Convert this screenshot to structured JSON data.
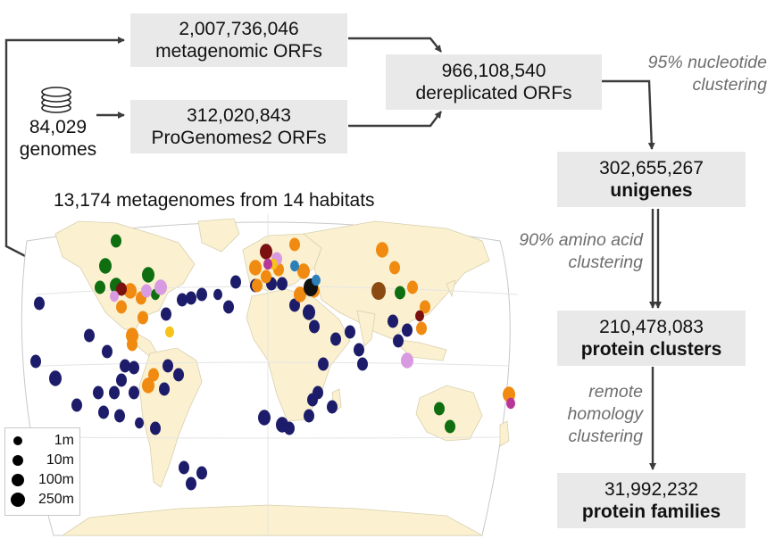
{
  "boxes": {
    "metagenomic": {
      "count": "2,007,736,046",
      "label": "metagenomic ORFs"
    },
    "progenomes": {
      "count": "312,020,843",
      "label": "ProGenomes2 ORFs"
    },
    "dereplicated": {
      "count": "966,108,540",
      "label": "dereplicated ORFs"
    },
    "unigenes": {
      "count": "302,655,267",
      "label": "unigenes"
    },
    "protein_clusters": {
      "count": "210,478,083",
      "label": "protein clusters"
    },
    "protein_families": {
      "count": "31,992,232",
      "label": "protein families"
    }
  },
  "genomes": {
    "count": "84,029",
    "label": "genomes",
    "icon": "database-icon"
  },
  "map": {
    "title": "13,174 metagenomes from 14 habitats"
  },
  "steps": {
    "nucleotide": [
      "95% nucleotide",
      "clustering"
    ],
    "amino_acid": [
      "90% amino acid",
      "clustering"
    ],
    "remote": [
      "remote",
      "homology",
      "clustering"
    ]
  },
  "legend": {
    "entries": [
      "1m",
      "10m",
      "100m",
      "250m"
    ]
  },
  "colors": {
    "box_fill": "#e9e9e9",
    "land": "#fbf1d1",
    "ocean": "#ffffff",
    "arrow": "#3c3c3c",
    "marine": "#1c1c6a",
    "orange": "#f08a10",
    "green": "#0e6e10",
    "pink": "#d89ae0",
    "brown": "#8b4a12",
    "darkred": "#7a1010",
    "yellow": "#f7c21a",
    "magenta": "#b8359a",
    "blue": "#2c7fb8",
    "black": "#111111"
  }
}
